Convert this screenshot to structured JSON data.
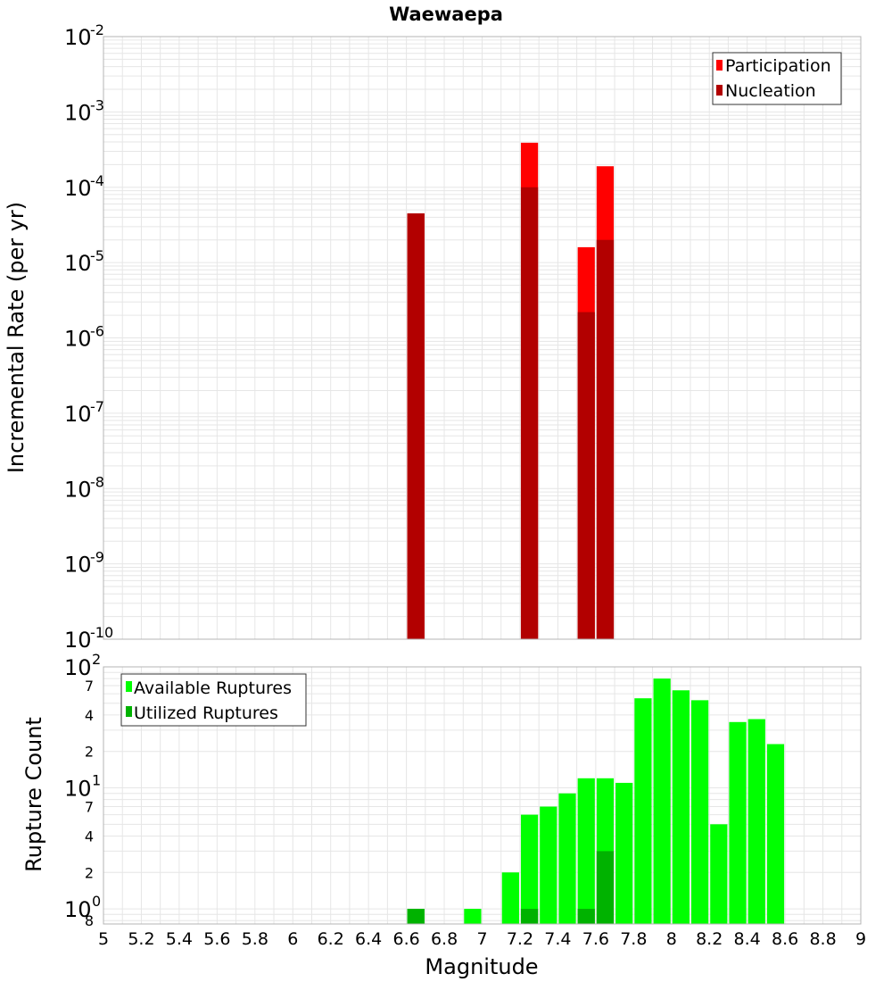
{
  "title": "Waewaepa",
  "colors": {
    "participation": "#ff0000",
    "nucleation": "#b20000",
    "available": "#00ff00",
    "utilized": "#00b200",
    "grid": "#e6e6e6",
    "frame": "#b4b4b4"
  },
  "chart_data": [
    {
      "type": "bar",
      "ylabel": "Incremental Rate (per yr)",
      "yscale": "log",
      "ylim_exp": [
        -10,
        -2
      ],
      "xlim": [
        5,
        9
      ],
      "grid": true,
      "legend_position": "top-right",
      "legend": [
        "Participation",
        "Nucleation"
      ],
      "y_tick_mantissa": "10",
      "y_tick_exponents": [
        "-10",
        "-9",
        "-8",
        "-7",
        "-6",
        "-5",
        "-4",
        "-3",
        "-2"
      ],
      "series": [
        {
          "name": "Participation",
          "points": [
            {
              "x": 6.65,
              "y": 4.5e-05
            },
            {
              "x": 7.25,
              "y": 0.00039
            },
            {
              "x": 7.55,
              "y": 1.6e-05
            },
            {
              "x": 7.65,
              "y": 0.00019
            }
          ]
        },
        {
          "name": "Nucleation",
          "points": [
            {
              "x": 6.65,
              "y": 4.5e-05
            },
            {
              "x": 7.25,
              "y": 0.0001
            },
            {
              "x": 7.55,
              "y": 2.2e-06
            },
            {
              "x": 7.65,
              "y": 2e-05
            }
          ]
        }
      ]
    },
    {
      "type": "bar",
      "xlabel": "Magnitude",
      "ylabel": "Rupture Count",
      "yscale": "log",
      "xlim": [
        5,
        9
      ],
      "grid": true,
      "legend_position": "top-left",
      "legend": [
        "Available Ruptures",
        "Utilized Ruptures"
      ],
      "x_ticks": [
        "5",
        "5.2",
        "5.4",
        "5.6",
        "5.8",
        "6",
        "6.2",
        "6.4",
        "6.6",
        "6.8",
        "7",
        "7.2",
        "7.4",
        "7.6",
        "7.8",
        "8",
        "8.2",
        "8.4",
        "8.6",
        "8.8",
        "9"
      ],
      "y_major_ticks": [
        {
          "v": 1,
          "m": "10",
          "e": "0"
        },
        {
          "v": 10,
          "m": "10",
          "e": "1"
        },
        {
          "v": 100,
          "m": "10",
          "e": "2"
        }
      ],
      "y_minor_ticks": [
        {
          "v": 0.8,
          "label": "8"
        },
        {
          "v": 2,
          "label": "2"
        },
        {
          "v": 4,
          "label": "4"
        },
        {
          "v": 7,
          "label": "7"
        },
        {
          "v": 20,
          "label": "2"
        },
        {
          "v": 40,
          "label": "4"
        },
        {
          "v": 70,
          "label": "7"
        }
      ],
      "series": [
        {
          "name": "Available Ruptures",
          "points": [
            {
              "x": 6.65,
              "y": 1
            },
            {
              "x": 6.95,
              "y": 1
            },
            {
              "x": 7.15,
              "y": 2
            },
            {
              "x": 7.25,
              "y": 6
            },
            {
              "x": 7.35,
              "y": 7
            },
            {
              "x": 7.45,
              "y": 9
            },
            {
              "x": 7.55,
              "y": 12
            },
            {
              "x": 7.65,
              "y": 12
            },
            {
              "x": 7.75,
              "y": 11
            },
            {
              "x": 7.85,
              "y": 55
            },
            {
              "x": 7.95,
              "y": 80
            },
            {
              "x": 8.05,
              "y": 64
            },
            {
              "x": 8.15,
              "y": 53
            },
            {
              "x": 8.25,
              "y": 5
            },
            {
              "x": 8.35,
              "y": 35
            },
            {
              "x": 8.45,
              "y": 37
            },
            {
              "x": 8.55,
              "y": 23
            }
          ]
        },
        {
          "name": "Utilized Ruptures",
          "points": [
            {
              "x": 6.65,
              "y": 1
            },
            {
              "x": 7.25,
              "y": 1
            },
            {
              "x": 7.55,
              "y": 1
            },
            {
              "x": 7.65,
              "y": 3
            }
          ]
        }
      ]
    }
  ]
}
